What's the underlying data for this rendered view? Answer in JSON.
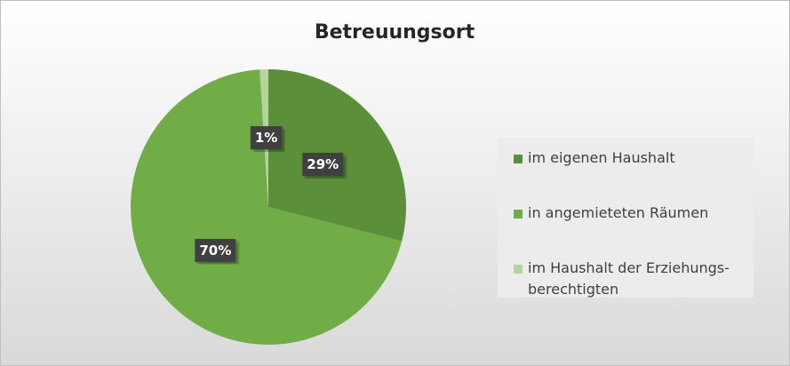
{
  "chart_data": {
    "type": "pie",
    "title": "Betreuungsort",
    "categories": [
      "im eigenen Haushalt",
      "in angemieteten Räumen",
      "im Haushalt der Erziehungs-berechtigten"
    ],
    "values": [
      29,
      70,
      1
    ],
    "value_labels": [
      "29%",
      "70%",
      "1%"
    ],
    "colors": [
      "#5b8f3a",
      "#70ad47",
      "#b4d49c"
    ],
    "legend": "right"
  }
}
